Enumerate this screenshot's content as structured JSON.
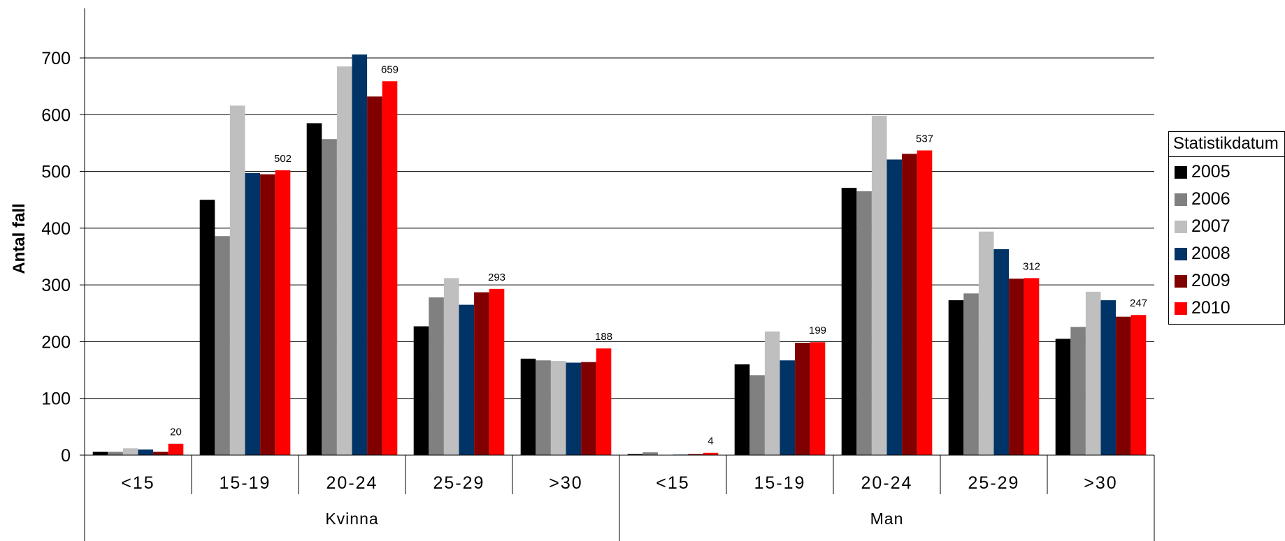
{
  "chart_data": {
    "type": "bar",
    "ylabel": "Antal fall",
    "ylim": [
      0,
      700
    ],
    "yticks": [
      0,
      100,
      200,
      300,
      400,
      500,
      600,
      700
    ],
    "groups": [
      {
        "label": "Kvinna",
        "categories": [
          "<15",
          "15-19",
          "20-24",
          "25-29",
          ">30"
        ]
      },
      {
        "label": "Man",
        "categories": [
          "<15",
          "15-19",
          "20-24",
          "25-29",
          ">30"
        ]
      }
    ],
    "legend": {
      "title": "Statistikdatum",
      "placement": "right"
    },
    "series": [
      {
        "name": "2005",
        "color": "#000000",
        "values": [
          6,
          450,
          585,
          227,
          170,
          2,
          160,
          471,
          273,
          205
        ]
      },
      {
        "name": "2006",
        "color": "#808080",
        "values": [
          6,
          386,
          557,
          278,
          167,
          5,
          141,
          465,
          285,
          226
        ]
      },
      {
        "name": "2007",
        "color": "#bfbfbf",
        "values": [
          12,
          616,
          685,
          312,
          166,
          0,
          218,
          598,
          394,
          288
        ]
      },
      {
        "name": "2008",
        "color": "#003366",
        "values": [
          10,
          497,
          706,
          265,
          163,
          1,
          167,
          521,
          363,
          273
        ]
      },
      {
        "name": "2009",
        "color": "#800000",
        "values": [
          6,
          495,
          632,
          287,
          164,
          2,
          198,
          531,
          311,
          244
        ]
      },
      {
        "name": "2010",
        "color": "#ff0000",
        "values": [
          20,
          502,
          659,
          293,
          188,
          4,
          199,
          537,
          312,
          247
        ]
      }
    ],
    "data_labels": {
      "series": "2010",
      "values": [
        "20",
        "502",
        "659",
        "293",
        "188",
        "4",
        "199",
        "537",
        "312",
        "247"
      ]
    }
  }
}
